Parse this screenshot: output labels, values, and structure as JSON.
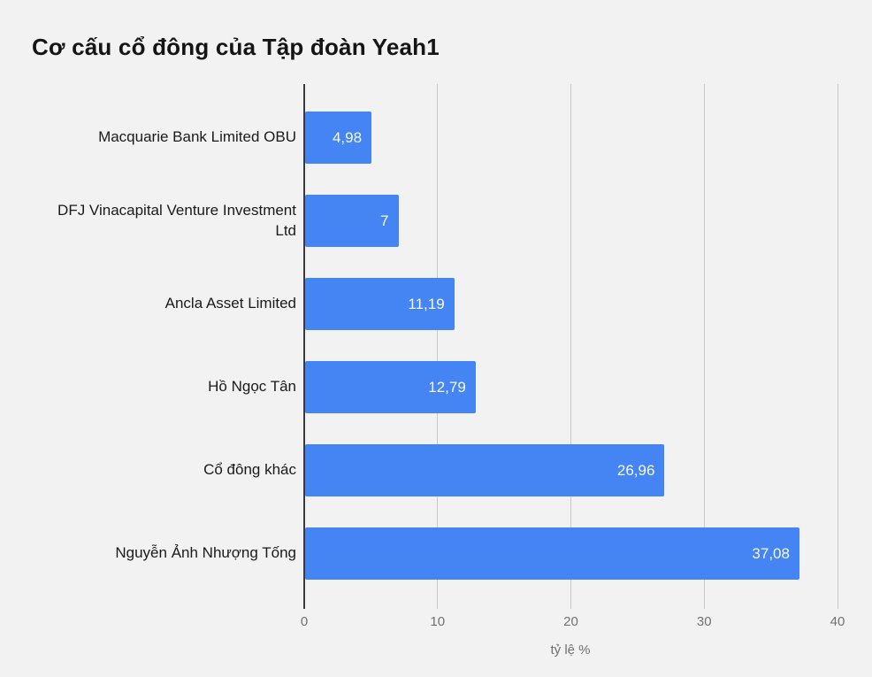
{
  "page": {
    "background": "#f2f2f2"
  },
  "chart_data": {
    "type": "bar",
    "orientation": "horizontal",
    "title": "Cơ cấu cổ đông của Tập đoàn Yeah1",
    "categories": [
      "Macquarie Bank Limited OBU",
      "DFJ Vinacapital Venture Investment Ltd",
      "Ancla Asset Limited",
      "Hồ Ngọc Tân",
      "Cổ đông khác",
      "Nguyễn Ảnh Nhượng Tống"
    ],
    "values": [
      4.98,
      7,
      11.19,
      12.79,
      26.96,
      37.08
    ],
    "value_labels": [
      "4,98",
      "7",
      "11,19",
      "12,79",
      "26,96",
      "37,08"
    ],
    "xlabel": "tỷ lệ %",
    "xlim": [
      0,
      40
    ],
    "xticks": [
      0,
      10,
      20,
      30,
      40
    ],
    "grid": true,
    "legend": "none",
    "bar_color": "#4484f3",
    "value_text_color": "#f7faf9",
    "label_text_color": "#1a1a1a",
    "tick_text_color": "#717171",
    "background": "#f2f2f2"
  }
}
